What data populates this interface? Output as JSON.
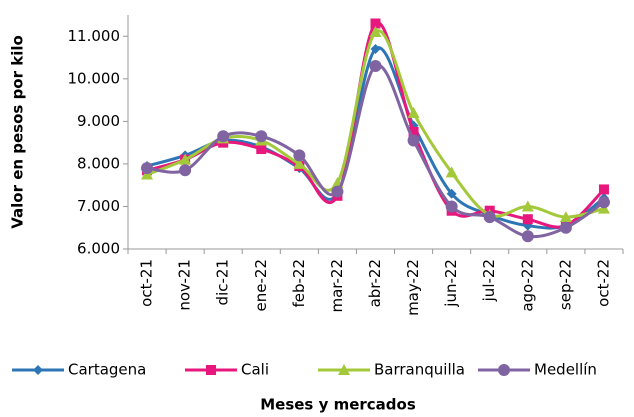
{
  "chart_data": {
    "type": "line",
    "smooth": true,
    "y_label": "Valor en pesos por kilo",
    "x_label": "Meses y mercados",
    "categories": [
      "oct-21",
      "nov-21",
      "dic-21",
      "ene-22",
      "feb-22",
      "mar-22",
      "abr-22",
      "may-22",
      "jun-22",
      "jul-22",
      "ago-22",
      "sep-22",
      "oct-22"
    ],
    "series": [
      {
        "name": "Cartagena",
        "color": "#2e75b6",
        "marker": "diamond",
        "values": [
          7950,
          8200,
          8550,
          8400,
          7900,
          7300,
          10700,
          8900,
          7300,
          6800,
          6550,
          6550,
          7200
        ]
      },
      {
        "name": "Cali",
        "color": "#e8177d",
        "marker": "square",
        "values": [
          7850,
          8100,
          8500,
          8350,
          7950,
          7250,
          11300,
          8750,
          6900,
          6900,
          6700,
          6550,
          7400
        ]
      },
      {
        "name": "Barranquilla",
        "color": "#a3c93a",
        "marker": "triangle",
        "values": [
          7750,
          8100,
          8600,
          8550,
          8000,
          7550,
          11100,
          9200,
          7800,
          6800,
          7000,
          6750,
          6950
        ]
      },
      {
        "name": "Medellín",
        "color": "#8064a2",
        "marker": "circle",
        "values": [
          7900,
          7850,
          8650,
          8650,
          8200,
          7350,
          10300,
          8550,
          7000,
          6750,
          6300,
          6500,
          7100
        ]
      }
    ],
    "ylim": [
      6000,
      11500
    ],
    "yticks": [
      {
        "value": 6000,
        "label": "6.000"
      },
      {
        "value": 7000,
        "label": "7.000"
      },
      {
        "value": 8000,
        "label": "8.000"
      },
      {
        "value": 9000,
        "label": "9.000"
      },
      {
        "value": 10000,
        "label": "10.000"
      },
      {
        "value": 11000,
        "label": "11.000"
      }
    ],
    "grid": false,
    "legend": "bottom"
  }
}
